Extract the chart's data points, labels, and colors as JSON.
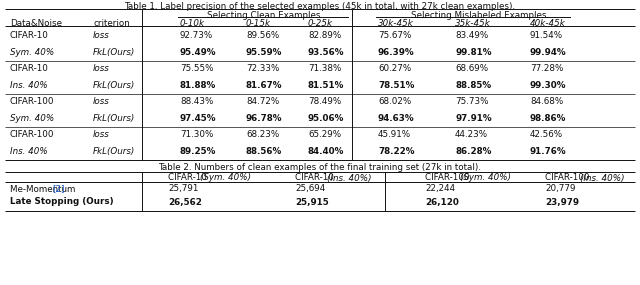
{
  "table1_title": "Table 1. Label precision of the selected examples (45κ in total, with 27κ clean examples).",
  "table1_title_plain": "Table 1. Label precision of the selected examples (45k in total, with 27k clean examples).",
  "col_headers": [
    "Data&Noise",
    "criterion",
    "0-10k",
    "0-15k",
    "0-25k",
    "30k-45k",
    "35k-45k",
    "40k-45k"
  ],
  "group_header_clean": "Selecting Clean Examples",
  "group_header_mis": "Selecting Mislabeled Examples",
  "table1_rows": [
    [
      "CIFAR-10",
      "loss",
      "92.73%",
      "89.56%",
      "82.89%",
      "75.67%",
      "83.49%",
      "91.54%"
    ],
    [
      "Sym. 40%",
      "FkL(Ours)",
      "95.49%",
      "95.59%",
      "93.56%",
      "96.39%",
      "99.81%",
      "99.94%"
    ],
    [
      "CIFAR-10",
      "loss",
      "75.55%",
      "72.33%",
      "71.38%",
      "60.27%",
      "68.69%",
      "77.28%"
    ],
    [
      "Ins. 40%",
      "FkL(Ours)",
      "81.88%",
      "81.67%",
      "81.51%",
      "78.51%",
      "88.85%",
      "99.30%"
    ],
    [
      "CIFAR-100",
      "loss",
      "88.43%",
      "84.72%",
      "78.49%",
      "68.02%",
      "75.73%",
      "84.68%"
    ],
    [
      "Sym. 40%",
      "FkL(Ours)",
      "97.45%",
      "96.78%",
      "95.06%",
      "94.63%",
      "97.91%",
      "98.86%"
    ],
    [
      "CIFAR-100",
      "loss",
      "71.30%",
      "68.23%",
      "65.29%",
      "45.91%",
      "44.23%",
      "42.56%"
    ],
    [
      "Ins. 40%",
      "FkL(Ours)",
      "89.25%",
      "88.56%",
      "84.40%",
      "78.22%",
      "86.28%",
      "91.76%"
    ]
  ],
  "table1_bold_rows": [
    1,
    3,
    5,
    7
  ],
  "table2_title": "Table 2. Numbers of clean examples of the final training set (27k in total).",
  "table2_col_headers_normal": [
    "",
    "CIFAR-10 ",
    "CIFAR-10 ",
    "CIFAR-100 ",
    "CIFAR-100 "
  ],
  "table2_col_headers_italic": [
    "",
    "(Sym. 40%)",
    "(Ins. 40%)",
    "(Sym. 40%)",
    "(Ins. 40%)"
  ],
  "table2_rows": [
    [
      "Me-Momentum [2]",
      "25,791",
      "25,694",
      "22,244",
      "20,779"
    ],
    [
      "Late Stopping (Ours)",
      "26,562",
      "25,915",
      "26,120",
      "23,979"
    ]
  ],
  "table2_bold_row": 1,
  "ref_color": "#0000cc"
}
